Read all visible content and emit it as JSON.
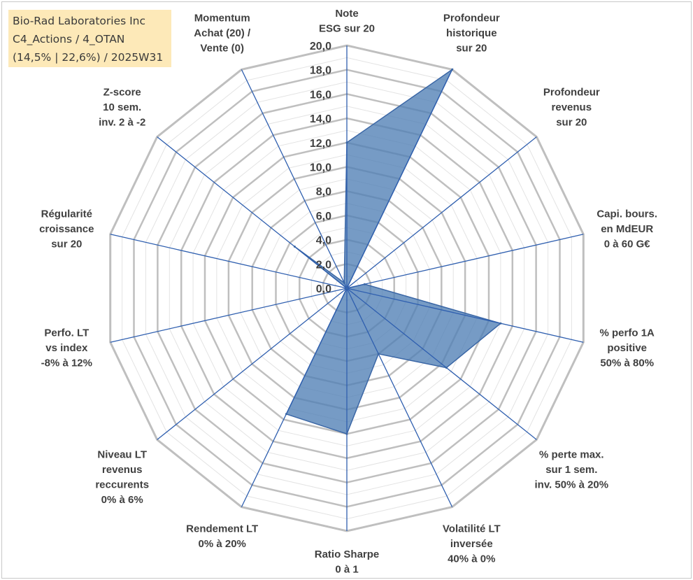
{
  "title_lines": [
    "Bio-Rad Laboratories Inc",
    "C4_Actions / 4_OTAN",
    "(14,5% | 22,6%) / 2025W31"
  ],
  "colors": {
    "fill": "#4f7fb5",
    "stroke": "#3b67a6",
    "spoke": "#2f5faf",
    "grid_major": "#bfbfbf",
    "grid_minor": "#e3e3e3",
    "title_bg": "#fde9b8"
  },
  "chart_data": {
    "type": "radar",
    "range": [
      0,
      20
    ],
    "grid_step": 2,
    "tick_labels": [
      "0,0",
      "2,0",
      "4,0",
      "6,0",
      "8,0",
      "10,0",
      "12,0",
      "14,0",
      "16,0",
      "18,0",
      "20,0"
    ],
    "axes": [
      {
        "lines": [
          "Note",
          "ESG sur 20"
        ],
        "value": 12.0
      },
      {
        "lines": [
          "Profondeur",
          "historique",
          "sur 20"
        ],
        "value": 20.0
      },
      {
        "lines": [
          "Profondeur",
          "revenus",
          "sur 20"
        ],
        "value": 0.0
      },
      {
        "lines": [
          "Capi. bours.",
          "en MdEUR",
          "0 à 60 G€"
        ],
        "value": 1.5
      },
      {
        "lines": [
          "% perfo 1A",
          "positive",
          "50% à 80%"
        ],
        "value": 13.0
      },
      {
        "lines": [
          "% perte max.",
          "sur 1 sem.",
          "inv. 50% à 20%"
        ],
        "value": 10.5
      },
      {
        "lines": [
          "Volatilité LT",
          "inversée",
          "40% à 0%"
        ],
        "value": 6.0
      },
      {
        "lines": [
          "Ratio Sharpe",
          "0 à 1"
        ],
        "value": 12.0
      },
      {
        "lines": [
          "Rendement LT",
          "0% à 20%"
        ],
        "value": 11.5
      },
      {
        "lines": [
          "Niveau LT",
          "revenus",
          "reccurents",
          "0% à 6%"
        ],
        "value": 0.0
      },
      {
        "lines": [
          "Perfo. LT",
          "vs index",
          "-8% à 12%"
        ],
        "value": 0.0
      },
      {
        "lines": [
          "Régularité",
          "croissance",
          "sur 20"
        ],
        "value": 0.0
      },
      {
        "lines": [
          "Z-score",
          "10 sem.",
          "inv. 2 à -2"
        ],
        "value": 5.5
      },
      {
        "lines": [
          "Momentum",
          "Achat (20) /",
          "Vente (0)"
        ],
        "value": 0.5
      }
    ]
  }
}
